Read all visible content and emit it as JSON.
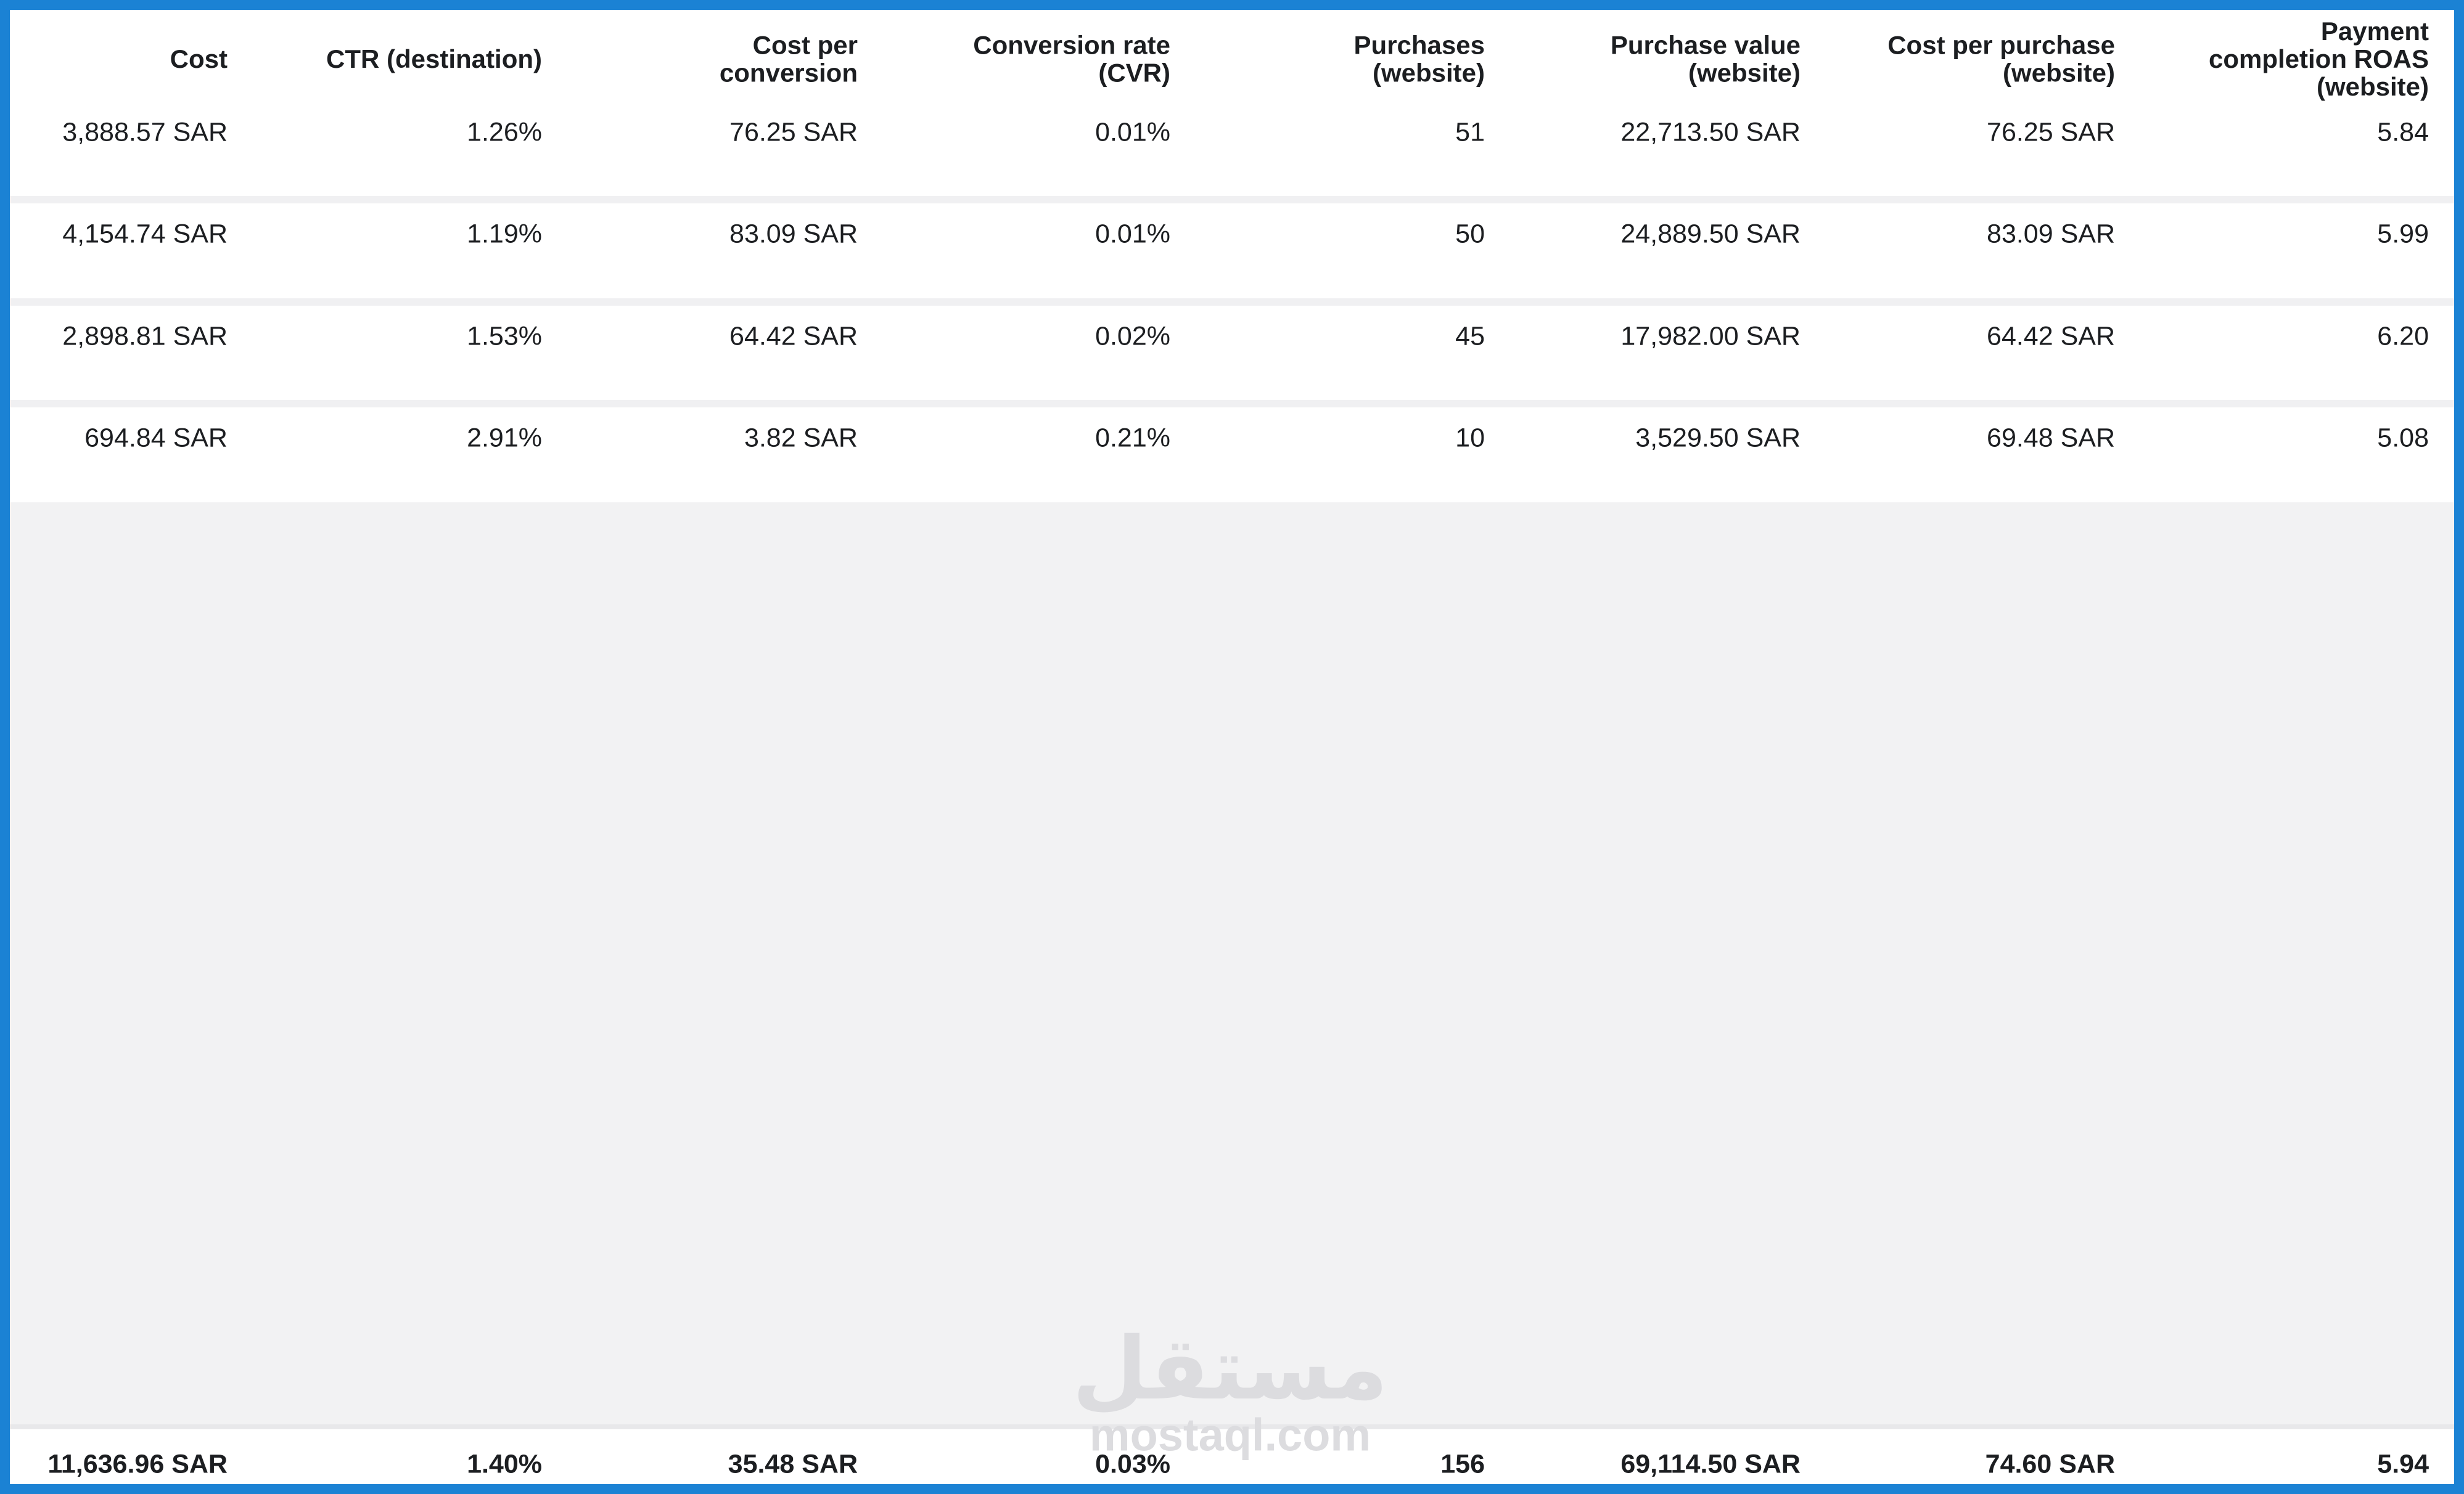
{
  "table": {
    "header": [
      [
        "Cost"
      ],
      [
        "CTR (destination)"
      ],
      [
        "Cost per",
        "conversion"
      ],
      [
        "Conversion rate",
        "(CVR)"
      ],
      [
        "Purchases",
        "(website)"
      ],
      [
        "Purchase value",
        "(website)"
      ],
      [
        "Cost per purchase",
        "(website)"
      ],
      [
        "Payment",
        "completion ROAS",
        "(website)"
      ]
    ],
    "rows": [
      [
        "3,888.57 SAR",
        "1.26%",
        "76.25 SAR",
        "0.01%",
        "51",
        "22,713.50 SAR",
        "76.25 SAR",
        "5.84"
      ],
      [
        "4,154.74 SAR",
        "1.19%",
        "83.09 SAR",
        "0.01%",
        "50",
        "24,889.50 SAR",
        "83.09 SAR",
        "5.99"
      ],
      [
        "2,898.81 SAR",
        "1.53%",
        "64.42 SAR",
        "0.02%",
        "45",
        "17,982.00 SAR",
        "64.42 SAR",
        "6.20"
      ],
      [
        "694.84 SAR",
        "2.91%",
        "3.82 SAR",
        "0.21%",
        "10",
        "3,529.50 SAR",
        "69.48 SAR",
        "5.08"
      ]
    ],
    "totals": [
      "11,636.96 SAR",
      "1.40%",
      "35.48 SAR",
      "0.03%",
      "156",
      "69,114.50 SAR",
      "74.60 SAR",
      "5.94"
    ]
  },
  "watermark": {
    "arabic": "مستقل",
    "latin": "mostaql.com"
  }
}
